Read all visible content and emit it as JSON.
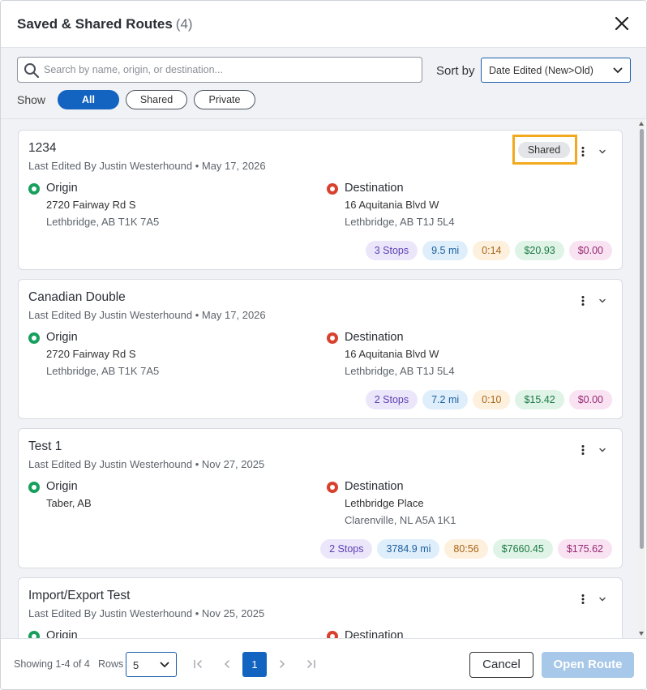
{
  "header": {
    "title": "Saved & Shared Routes",
    "count": "(4)"
  },
  "filters": {
    "search_placeholder": "Search by name, origin, or destination...",
    "sort_label": "Sort by",
    "sort_value": "Date Edited (New>Old)",
    "show_label": "Show",
    "show_options": [
      "All",
      "Shared",
      "Private"
    ],
    "show_selected": "All"
  },
  "routes": [
    {
      "name": "1234",
      "edited": "Last Edited By Justin Westerhound • May 17, 2026",
      "badge": "Shared",
      "origin_label": "Origin",
      "origin_line1": "2720 Fairway Rd S",
      "origin_line2": "Lethbridge, AB T1K 7A5",
      "dest_label": "Destination",
      "dest_line1": "16 Aquitania Blvd W",
      "dest_line2": "Lethbridge, AB T1J 5L4",
      "stops": "3 Stops",
      "distance": "9.5 mi",
      "time": "0:14",
      "cost": "$20.93",
      "tolls": "$0.00"
    },
    {
      "name": "Canadian Double",
      "edited": "Last Edited By Justin Westerhound • May 17, 2026",
      "badge": "",
      "origin_label": "Origin",
      "origin_line1": "2720 Fairway Rd S",
      "origin_line2": "Lethbridge, AB T1K 7A5",
      "dest_label": "Destination",
      "dest_line1": "16 Aquitania Blvd W",
      "dest_line2": "Lethbridge, AB T1J 5L4",
      "stops": "2 Stops",
      "distance": "7.2 mi",
      "time": "0:10",
      "cost": "$15.42",
      "tolls": "$0.00"
    },
    {
      "name": "Test 1",
      "edited": "Last Edited By Justin Westerhound • Nov 27, 2025",
      "badge": "",
      "origin_label": "Origin",
      "origin_line1": "Taber, AB",
      "origin_line2": "",
      "dest_label": "Destination",
      "dest_line1": "Lethbridge Place",
      "dest_line2": "Clarenville, NL A5A 1K1",
      "stops": "2 Stops",
      "distance": "3784.9 mi",
      "time": "80:56",
      "cost": "$7660.45",
      "tolls": "$175.62"
    },
    {
      "name": "Import/Export Test",
      "edited": "Last Edited By Justin Westerhound • Nov 25, 2025",
      "badge": "",
      "origin_label": "Origin",
      "origin_line1": "",
      "origin_line2": "",
      "dest_label": "Destination",
      "dest_line1": "",
      "dest_line2": "",
      "stops": "",
      "distance": "",
      "time": "",
      "cost": "",
      "tolls": ""
    }
  ],
  "footer": {
    "showing": "Showing 1-4 of 4",
    "rows_label": "Rows",
    "rows_value": "5",
    "current_page": "1",
    "cancel": "Cancel",
    "open_route": "Open Route"
  },
  "colors": {
    "primary": "#1363c1",
    "highlight_border": "#f2a91e",
    "origin_dot": "#17a05d",
    "destination_dot": "#d9412f",
    "open_button_disabled": "#a7c8e8"
  },
  "icons": [
    "search-icon",
    "close-icon",
    "chevron-down-icon",
    "kebab-icon",
    "first-page-icon",
    "prev-page-icon",
    "next-page-icon",
    "last-page-icon"
  ]
}
